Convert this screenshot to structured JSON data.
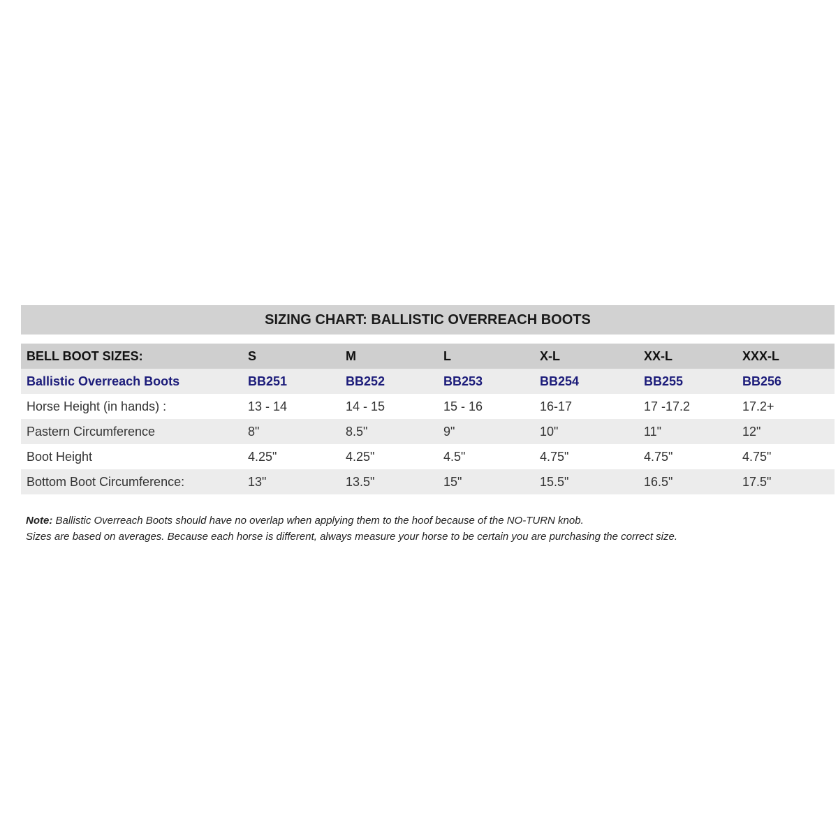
{
  "title": "SIZING CHART: BALLISTIC OVERREACH BOOTS",
  "header": [
    "BELL BOOT SIZES:",
    "S",
    "M",
    "L",
    "X-L",
    "XX-L",
    "XXX-L"
  ],
  "rows": [
    [
      "Ballistic Overreach Boots",
      "BB251",
      "BB252",
      "BB253",
      "BB254",
      "BB255",
      "BB256"
    ],
    [
      "Horse Height (in hands) :",
      "13 - 14",
      "14 - 15",
      "15 - 16",
      "16-17",
      "17 -17.2",
      "17.2+"
    ],
    [
      "Pastern Circumference",
      "8\"",
      "8.5\"",
      "9\"",
      "10\"",
      "11\"",
      "12\""
    ],
    [
      "Boot Height",
      "4.25\"",
      "4.25\"",
      "4.5\"",
      "4.75\"",
      "4.75\"",
      "4.75\""
    ],
    [
      "Bottom Boot Circumference:",
      "13\"",
      "13.5\"",
      "15\"",
      "15.5\"",
      "16.5\"",
      "17.5\""
    ]
  ],
  "notes": {
    "label": "Note:",
    "line1": " Ballistic Overreach Boots should have no overlap when applying them to the hoof because of the NO-TURN knob.",
    "line2": "Sizes are based on averages. Because each horse is different, always measure your horse to be certain you are purchasing the correct size."
  },
  "colors": {
    "header_bg": "#cfcfcf",
    "stripe": "#ececec",
    "product_text": "#1c1c7a"
  }
}
